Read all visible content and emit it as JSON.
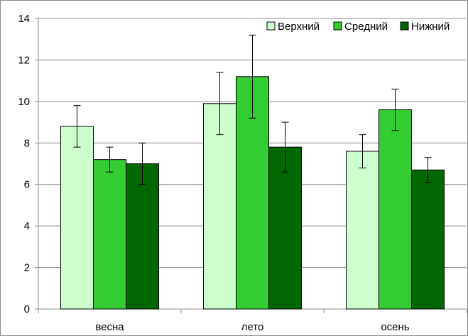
{
  "chart_data": {
    "type": "bar",
    "categories": [
      "весна",
      "лето",
      "осень"
    ],
    "series": [
      {
        "name": "Верхний",
        "color": "#ccffcc",
        "values": [
          8.8,
          9.9,
          7.6
        ],
        "error_low": [
          7.8,
          8.4,
          6.8
        ],
        "error_high": [
          9.8,
          11.4,
          8.4
        ]
      },
      {
        "name": "Средний",
        "color": "#33cc33",
        "values": [
          7.2,
          11.2,
          9.6
        ],
        "error_low": [
          6.6,
          9.2,
          8.6
        ],
        "error_high": [
          7.8,
          13.2,
          10.6
        ]
      },
      {
        "name": "Нижний",
        "color": "#006600",
        "values": [
          7.0,
          7.8,
          6.7
        ],
        "error_low": [
          6.0,
          6.6,
          6.1
        ],
        "error_high": [
          8.0,
          9.0,
          7.3
        ]
      }
    ],
    "yticks": [
      0,
      2,
      4,
      6,
      8,
      10,
      12,
      14
    ],
    "ylim": [
      0,
      14
    ],
    "grid": true,
    "legend_position": "top-right",
    "title": "",
    "xlabel": "",
    "ylabel": ""
  }
}
